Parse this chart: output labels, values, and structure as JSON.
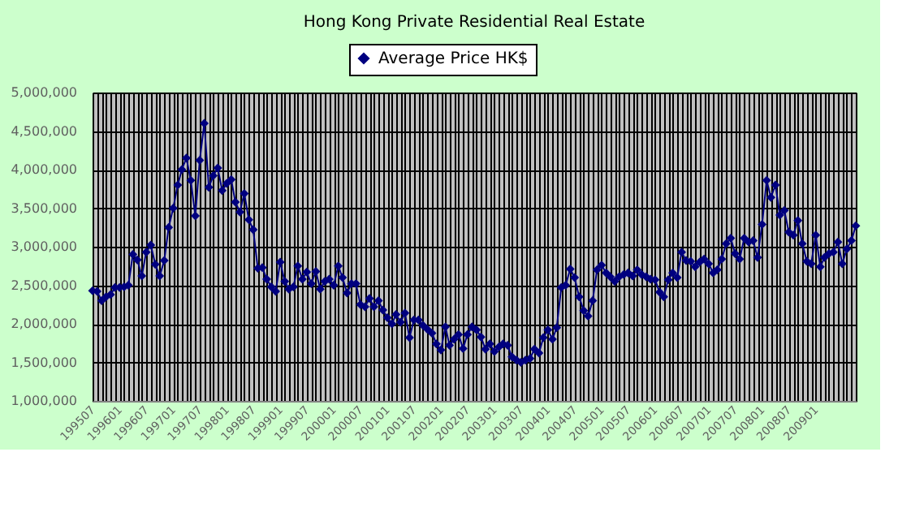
{
  "chart_data": {
    "type": "line",
    "title": "Hong Kong Private Residential Real Estate",
    "x": [
      "1995-07",
      "1995-08",
      "1995-09",
      "1995-10",
      "1995-11",
      "1995-12",
      "1996-01",
      "1996-02",
      "1996-03",
      "1996-04",
      "1996-05",
      "1996-06",
      "1996-07",
      "1996-08",
      "1996-09",
      "1996-10",
      "1996-11",
      "1996-12",
      "1997-01",
      "1997-02",
      "1997-03",
      "1997-04",
      "1997-05",
      "1997-06",
      "1997-07",
      "1997-08",
      "1997-09",
      "1997-10",
      "1997-11",
      "1997-12",
      "1998-01",
      "1998-02",
      "1998-03",
      "1998-04",
      "1998-05",
      "1998-06",
      "1998-07",
      "1998-08",
      "1998-09",
      "1998-10",
      "1998-11",
      "1998-12",
      "1999-01",
      "1999-02",
      "1999-03",
      "1999-04",
      "1999-05",
      "1999-06",
      "1999-07",
      "1999-08",
      "1999-09",
      "1999-10",
      "1999-11",
      "1999-12",
      "2000-01",
      "2000-02",
      "2000-03",
      "2000-04",
      "2000-05",
      "2000-06",
      "2000-07",
      "2000-08",
      "2000-09",
      "2000-10",
      "2000-11",
      "2000-12",
      "2001-01",
      "2001-02",
      "2001-03",
      "2001-04",
      "2001-05",
      "2001-06",
      "2001-07",
      "2001-08",
      "2001-09",
      "2001-10",
      "2001-11",
      "2001-12",
      "2002-01",
      "2002-02",
      "2002-03",
      "2002-04",
      "2002-05",
      "2002-06",
      "2002-07",
      "2002-08",
      "2002-09",
      "2002-10",
      "2002-11",
      "2002-12",
      "2003-01",
      "2003-02",
      "2003-03",
      "2003-04",
      "2003-05",
      "2003-06",
      "2003-07",
      "2003-08",
      "2003-09",
      "2003-10",
      "2003-11",
      "2003-12",
      "2004-01",
      "2004-02",
      "2004-03",
      "2004-04",
      "2004-05",
      "2004-06",
      "2004-07",
      "2004-08",
      "2004-09",
      "2004-10",
      "2004-11",
      "2004-12",
      "2005-01",
      "2005-02",
      "2005-03",
      "2005-04",
      "2005-05",
      "2005-06",
      "2005-07",
      "2005-08",
      "2005-09",
      "2005-10",
      "2005-11",
      "2005-12",
      "2006-01",
      "2006-02",
      "2006-03",
      "2006-04",
      "2006-05",
      "2006-06",
      "2006-07",
      "2006-08",
      "2006-09",
      "2006-10",
      "2006-11",
      "2006-12",
      "2007-01",
      "2007-02",
      "2007-03",
      "2007-04",
      "2007-05",
      "2007-06",
      "2007-07",
      "2007-08",
      "2007-09",
      "2007-10",
      "2007-11",
      "2007-12",
      "2008-01",
      "2008-02",
      "2008-03",
      "2008-04",
      "2008-05",
      "2008-06",
      "2008-07",
      "2008-08",
      "2008-09",
      "2008-10",
      "2008-11",
      "2008-12",
      "2009-01",
      "2009-02",
      "2009-03",
      "2009-04",
      "2009-05",
      "2009-06",
      "2009-07",
      "2009-08",
      "2009-09",
      "2009-10"
    ],
    "series": [
      {
        "name": "Average Price HK$",
        "color": "#000080",
        "values": [
          2430000,
          2420000,
          2300000,
          2350000,
          2380000,
          2470000,
          2470000,
          2480000,
          2500000,
          2900000,
          2830000,
          2620000,
          2930000,
          3020000,
          2770000,
          2620000,
          2820000,
          3250000,
          3500000,
          3800000,
          4000000,
          4150000,
          3860000,
          3400000,
          4120000,
          4600000,
          3770000,
          3920000,
          4020000,
          3730000,
          3820000,
          3870000,
          3580000,
          3450000,
          3690000,
          3350000,
          3220000,
          2720000,
          2730000,
          2580000,
          2480000,
          2420000,
          2800000,
          2550000,
          2450000,
          2480000,
          2750000,
          2580000,
          2670000,
          2520000,
          2680000,
          2450000,
          2550000,
          2580000,
          2500000,
          2750000,
          2600000,
          2400000,
          2520000,
          2520000,
          2250000,
          2220000,
          2330000,
          2220000,
          2300000,
          2180000,
          2080000,
          2000000,
          2120000,
          2020000,
          2140000,
          1820000,
          2050000,
          2050000,
          1980000,
          1930000,
          1880000,
          1740000,
          1660000,
          1960000,
          1720000,
          1800000,
          1860000,
          1680000,
          1860000,
          1960000,
          1920000,
          1830000,
          1670000,
          1740000,
          1640000,
          1700000,
          1740000,
          1720000,
          1570000,
          1530000,
          1500000,
          1530000,
          1550000,
          1670000,
          1620000,
          1820000,
          1920000,
          1800000,
          1950000,
          2470000,
          2500000,
          2710000,
          2600000,
          2350000,
          2170000,
          2100000,
          2300000,
          2700000,
          2760000,
          2660000,
          2610000,
          2550000,
          2610000,
          2640000,
          2660000,
          2620000,
          2700000,
          2640000,
          2610000,
          2580000,
          2570000,
          2410000,
          2350000,
          2570000,
          2660000,
          2600000,
          2930000,
          2820000,
          2810000,
          2740000,
          2800000,
          2840000,
          2780000,
          2660000,
          2700000,
          2840000,
          3040000,
          3110000,
          2910000,
          2840000,
          3110000,
          3060000,
          3080000,
          2860000,
          3290000,
          3860000,
          3640000,
          3800000,
          3410000,
          3470000,
          3190000,
          3150000,
          3340000,
          3040000,
          2810000,
          2780000,
          3150000,
          2740000,
          2860000,
          2910000,
          2930000,
          3060000,
          2780000,
          2970000,
          3080000,
          3270000
        ]
      }
    ],
    "ylim": [
      1000000,
      5000000
    ],
    "yticks": [
      {
        "value": 1000000,
        "label": "1,000,000"
      },
      {
        "value": 1500000,
        "label": "1,500,000"
      },
      {
        "value": 2000000,
        "label": "2,000,000"
      },
      {
        "value": 2500000,
        "label": "2,500,000"
      },
      {
        "value": 3000000,
        "label": "3,000,000"
      },
      {
        "value": 3500000,
        "label": "3,500,000"
      },
      {
        "value": 4000000,
        "label": "4,000,000"
      },
      {
        "value": 4500000,
        "label": "4,500,000"
      },
      {
        "value": 5000000,
        "label": "5,000,000"
      }
    ],
    "xlim": [
      "1995-07",
      "2009-10"
    ],
    "xticks": [
      {
        "value": "1995-07",
        "label": "199507"
      },
      {
        "value": "1996-01",
        "label": "199601"
      },
      {
        "value": "1996-07",
        "label": "199607"
      },
      {
        "value": "1997-01",
        "label": "199701"
      },
      {
        "value": "1997-07",
        "label": "199707"
      },
      {
        "value": "1998-01",
        "label": "199801"
      },
      {
        "value": "1998-07",
        "label": "199807"
      },
      {
        "value": "1999-01",
        "label": "199901"
      },
      {
        "value": "1999-07",
        "label": "199907"
      },
      {
        "value": "2000-01",
        "label": "200001"
      },
      {
        "value": "2000-07",
        "label": "200007"
      },
      {
        "value": "2001-01",
        "label": "200101"
      },
      {
        "value": "2001-07",
        "label": "200107"
      },
      {
        "value": "2002-01",
        "label": "200201"
      },
      {
        "value": "2002-07",
        "label": "200207"
      },
      {
        "value": "2003-01",
        "label": "200301"
      },
      {
        "value": "2003-07",
        "label": "200307"
      },
      {
        "value": "2004-01",
        "label": "200401"
      },
      {
        "value": "2004-07",
        "label": "200407"
      },
      {
        "value": "2005-01",
        "label": "200501"
      },
      {
        "value": "2005-07",
        "label": "200507"
      },
      {
        "value": "2006-01",
        "label": "200601"
      },
      {
        "value": "2006-07",
        "label": "200607"
      },
      {
        "value": "2007-01",
        "label": "200701"
      },
      {
        "value": "2007-07",
        "label": "200707"
      },
      {
        "value": "2008-01",
        "label": "200801"
      },
      {
        "value": "2008-07",
        "label": "200807"
      },
      {
        "value": "2009-01",
        "label": "200901"
      }
    ],
    "grid": true,
    "legend": "top",
    "marker": "diamond",
    "line_style": "solid"
  }
}
